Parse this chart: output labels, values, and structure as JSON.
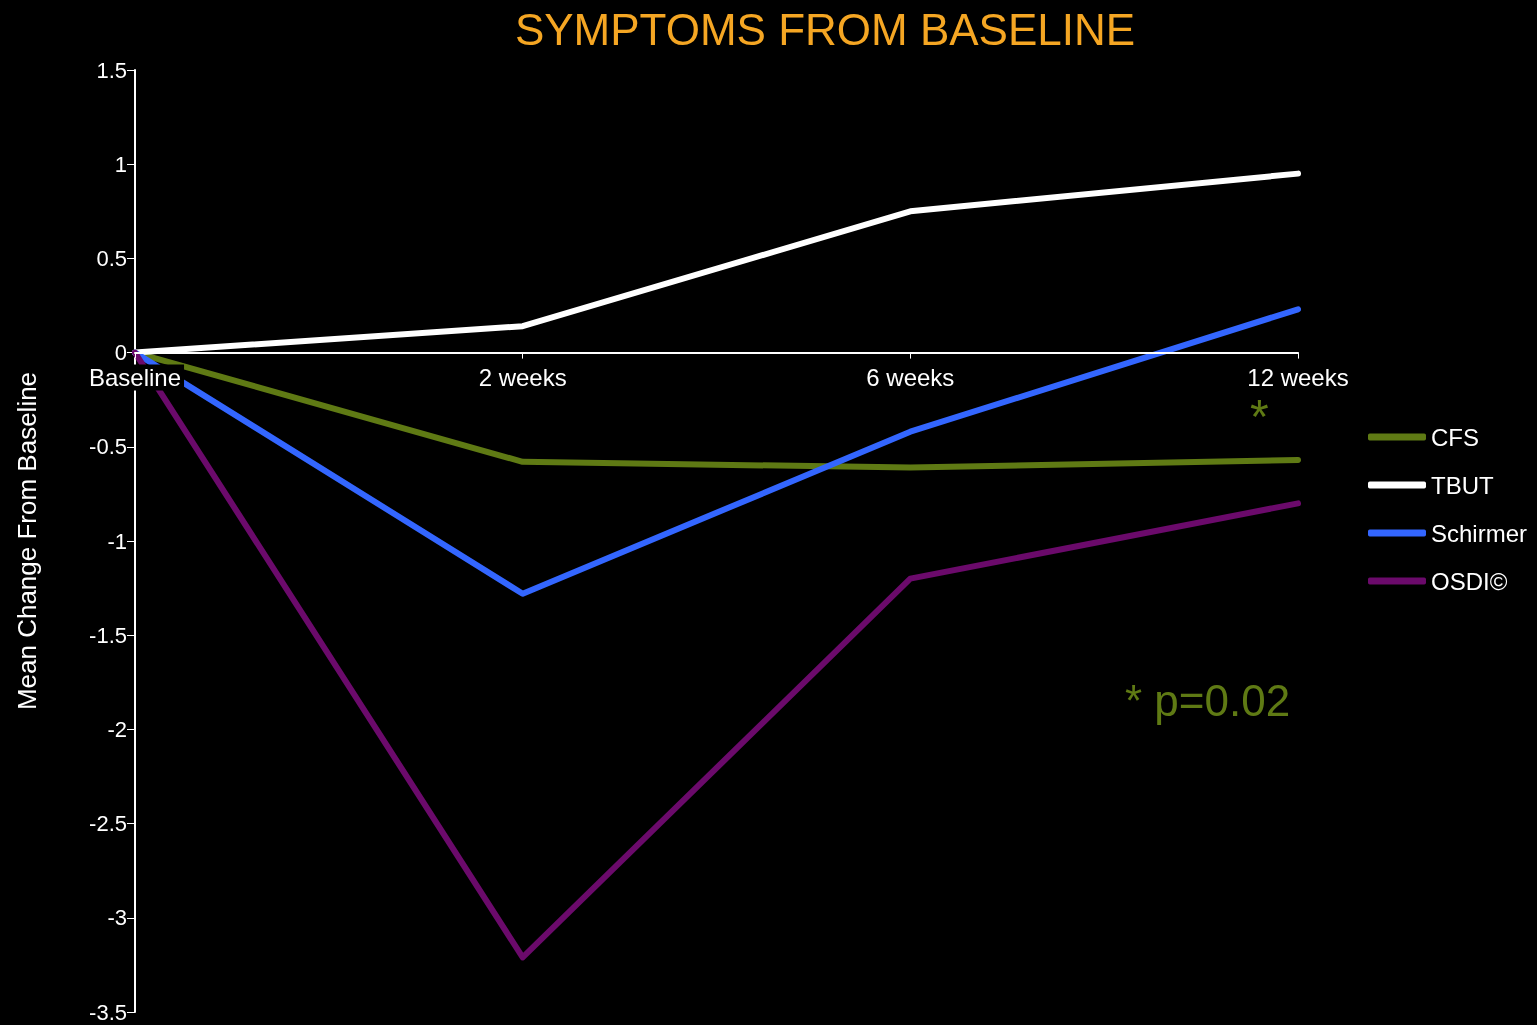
{
  "chart_data": {
    "type": "line",
    "title": "SYMPTOMS FROM BASELINE",
    "ylabel": "Mean Change From Baseline",
    "categories": [
      "Baseline",
      "2 weeks",
      "6 weeks",
      "12 weeks"
    ],
    "series": [
      {
        "name": "CFS",
        "color": "#5f7a14",
        "values": [
          0,
          -0.58,
          -0.61,
          -0.57
        ]
      },
      {
        "name": "TBUT",
        "color": "#ffffff",
        "values": [
          0,
          0.14,
          0.75,
          0.95
        ]
      },
      {
        "name": "Schirmer",
        "color": "#3366ff",
        "values": [
          0,
          -1.28,
          -0.42,
          0.23
        ]
      },
      {
        "name": "OSDI©",
        "color": "#6b0a6b",
        "values": [
          0,
          -3.21,
          -1.2,
          -0.8
        ]
      }
    ],
    "ylim": [
      -3.5,
      1.5
    ],
    "yticks": [
      -3.5,
      -3,
      -2.5,
      -2,
      -1.5,
      -1,
      -0.5,
      0,
      0.5,
      1,
      1.5
    ],
    "annotations": [
      "*",
      "* p=0.02"
    ],
    "legend": "right",
    "grid": false,
    "marker": "none",
    "line_style": "solid"
  }
}
